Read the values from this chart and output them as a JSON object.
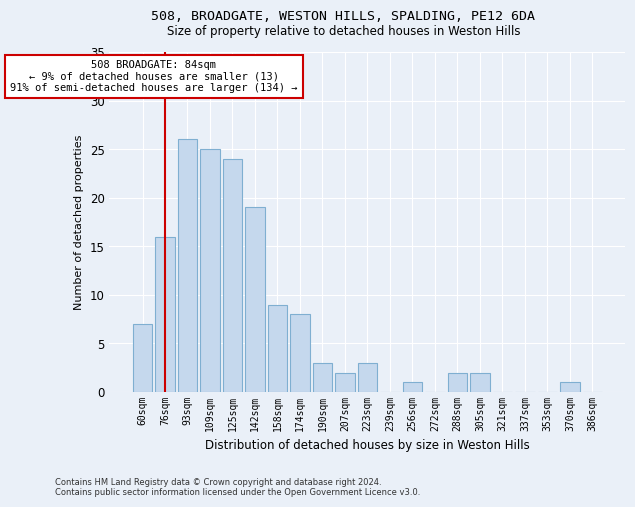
{
  "title1": "508, BROADGATE, WESTON HILLS, SPALDING, PE12 6DA",
  "title2": "Size of property relative to detached houses in Weston Hills",
  "xlabel": "Distribution of detached houses by size in Weston Hills",
  "ylabel": "Number of detached properties",
  "categories": [
    "60sqm",
    "76sqm",
    "93sqm",
    "109sqm",
    "125sqm",
    "142sqm",
    "158sqm",
    "174sqm",
    "190sqm",
    "207sqm",
    "223sqm",
    "239sqm",
    "256sqm",
    "272sqm",
    "288sqm",
    "305sqm",
    "321sqm",
    "337sqm",
    "353sqm",
    "370sqm",
    "386sqm"
  ],
  "values": [
    7,
    16,
    26,
    25,
    24,
    19,
    9,
    8,
    3,
    2,
    3,
    0,
    1,
    0,
    2,
    2,
    0,
    0,
    0,
    1,
    0
  ],
  "bar_color": "#c5d8ed",
  "bar_edge_color": "#7fafd1",
  "vline_x": 1,
  "vline_color": "#cc0000",
  "annotation_text": "508 BROADGATE: 84sqm\n← 9% of detached houses are smaller (13)\n91% of semi-detached houses are larger (134) →",
  "annotation_box_color": "#ffffff",
  "annotation_box_edge": "#cc0000",
  "ylim": [
    0,
    35
  ],
  "yticks": [
    0,
    5,
    10,
    15,
    20,
    25,
    30,
    35
  ],
  "background_color": "#eaf0f8",
  "grid_color": "#ffffff",
  "footnote": "Contains HM Land Registry data © Crown copyright and database right 2024.\nContains public sector information licensed under the Open Government Licence v3.0."
}
